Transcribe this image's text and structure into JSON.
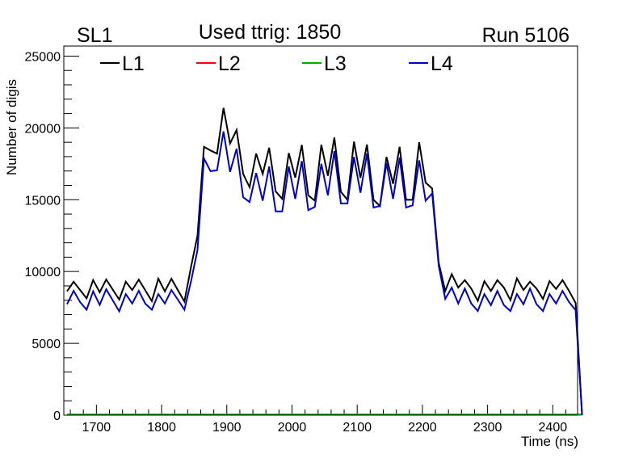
{
  "chart_data": {
    "type": "line",
    "title_left": "SL1",
    "title": "Used ttrig: 1850",
    "title_right": "Run 5106",
    "xlabel": "Time (ns)",
    "ylabel": "Number of digis",
    "xlim": [
      1650,
      2438
    ],
    "ylim": [
      0,
      25700
    ],
    "xticks": [
      1700,
      1800,
      1900,
      2000,
      2100,
      2200,
      2300,
      2400
    ],
    "xtick_labels": [
      "1700",
      "1800",
      "1900",
      "2000",
      "2100",
      "2200",
      "2300",
      "2400"
    ],
    "yticks": [
      0,
      5000,
      10000,
      15000,
      20000,
      25000
    ],
    "ytick_labels": [
      "0",
      "5000",
      "10000",
      "15000",
      "20000",
      "25000"
    ],
    "x_minor_step": 20,
    "y_minor_step": 1000,
    "grid": false,
    "legend_position": "top",
    "x_start": 1655,
    "x_step": 10,
    "series": [
      {
        "name": "L1",
        "color": "#000000",
        "values": [
          8620,
          9290,
          8710,
          8130,
          9400,
          8560,
          9440,
          8750,
          8050,
          9290,
          8710,
          9440,
          8690,
          7940,
          9500,
          8620,
          9500,
          8700,
          7910,
          10300,
          12500,
          18680,
          18430,
          18210,
          21390,
          18920,
          19850,
          16800,
          15870,
          18210,
          16800,
          18620,
          15580,
          15060,
          18250,
          16540,
          18810,
          15300,
          14930,
          18830,
          16670,
          19330,
          15550,
          14990,
          19050,
          16520,
          18840,
          14990,
          14560,
          17980,
          16110,
          18680,
          14990,
          14990,
          19000,
          16190,
          15780,
          10600,
          8650,
          9820,
          8880,
          9400,
          8810,
          7960,
          9330,
          8650,
          9400,
          8880,
          8000,
          9520,
          8710,
          9290,
          8810,
          8090,
          9330,
          8790,
          9400,
          8650,
          7810,
          0
        ]
      },
      {
        "name": "L2",
        "color": "#ff0000",
        "values": [
          30,
          30,
          30,
          30,
          30,
          30,
          30,
          30,
          30,
          30,
          30,
          30,
          30,
          30,
          30,
          30,
          30,
          30,
          30,
          30,
          30,
          30,
          30,
          30,
          30,
          30,
          30,
          30,
          30,
          30,
          30,
          30,
          30,
          30,
          30,
          30,
          30,
          30,
          30,
          30,
          30,
          30,
          30,
          30,
          30,
          30,
          30,
          30,
          30,
          30,
          30,
          30,
          30,
          30,
          30,
          30,
          30,
          30,
          30,
          30,
          30,
          30,
          30,
          30,
          30,
          30,
          30,
          30,
          30,
          30,
          30,
          30,
          30,
          30,
          30,
          30,
          30,
          30,
          30,
          30
        ]
      },
      {
        "name": "L3",
        "color": "#00aa00",
        "values": [
          50,
          50,
          50,
          50,
          50,
          50,
          50,
          50,
          50,
          50,
          50,
          50,
          50,
          50,
          50,
          50,
          50,
          50,
          50,
          50,
          50,
          50,
          50,
          50,
          50,
          50,
          50,
          50,
          50,
          50,
          50,
          50,
          50,
          50,
          50,
          50,
          50,
          50,
          50,
          50,
          50,
          50,
          50,
          50,
          50,
          50,
          50,
          50,
          50,
          50,
          50,
          50,
          50,
          50,
          50,
          50,
          50,
          50,
          50,
          50,
          50,
          50,
          50,
          50,
          50,
          50,
          50,
          50,
          50,
          50,
          50,
          50,
          50,
          50,
          50,
          50,
          50,
          50,
          50,
          50
        ]
      },
      {
        "name": "L4",
        "color": "#0000cc",
        "values": [
          7720,
          8655,
          7870,
          7340,
          8620,
          7680,
          8770,
          8000,
          7230,
          8430,
          7770,
          8655,
          7760,
          7340,
          8430,
          7770,
          8710,
          8040,
          7340,
          9300,
          11500,
          17870,
          16990,
          17050,
          19750,
          16930,
          18550,
          15170,
          14840,
          16860,
          14930,
          17310,
          14180,
          14180,
          17310,
          15060,
          17690,
          14270,
          14500,
          17500,
          15300,
          18390,
          14740,
          14740,
          17980,
          15490,
          18210,
          14460,
          14560,
          17550,
          15060,
          17930,
          14460,
          14610,
          17740,
          14930,
          15440,
          10400,
          8090,
          8880,
          7770,
          8810,
          7770,
          7250,
          8430,
          7660,
          8650,
          7660,
          7250,
          8430,
          7720,
          8810,
          7720,
          7250,
          8430,
          7770,
          8650,
          7870,
          7310,
          0
        ]
      }
    ]
  }
}
